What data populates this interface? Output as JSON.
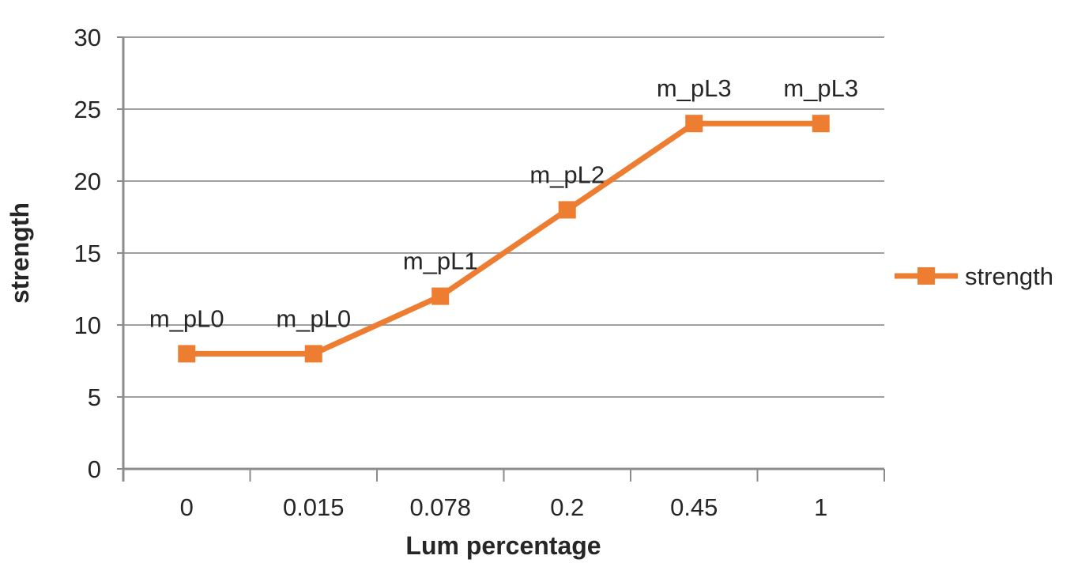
{
  "chart_data": {
    "type": "line",
    "title": "",
    "xlabel": "Lum percentage",
    "ylabel": "strength",
    "categories": [
      "0",
      "0.015",
      "0.078",
      "0.2",
      "0.45",
      "1"
    ],
    "series": [
      {
        "name": "strength",
        "values": [
          8,
          8,
          12,
          18,
          24,
          24
        ],
        "point_labels": [
          "m_pL0",
          "m_pL0",
          "m_pL1",
          "m_pL2",
          "m_pL3",
          "m_pL3"
        ]
      }
    ],
    "ylim": [
      0,
      30
    ],
    "y_tick_step": 5,
    "y_tick_labels": [
      "0",
      "5",
      "10",
      "15",
      "20",
      "25",
      "30"
    ],
    "grid": true,
    "legend": {
      "position": "right",
      "entries": [
        "strength"
      ]
    },
    "colors": {
      "series": "#ED7D31",
      "gridline": "#A0A0A0",
      "axis": "#8C8C8C",
      "text": "#262626",
      "background": "#FFFFFF"
    }
  }
}
